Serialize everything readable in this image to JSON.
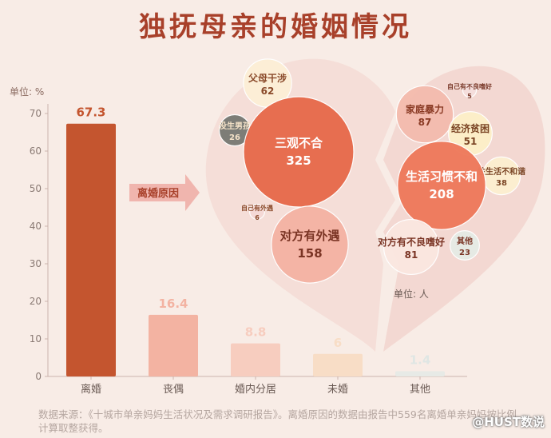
{
  "page": {
    "title": "独抚母亲的婚姻情况",
    "unit_label": "单位: %",
    "source_note": "数据来源：《十城市单亲妈妈生活状况及需求调研报告》。离婚原因的数据由报告中559名离婚单亲妈妈按比例计算取整获得。",
    "watermark": "@HUST数说"
  },
  "chart_data": [
    {
      "type": "bar",
      "categories": [
        "离婚",
        "丧偶",
        "婚内分居",
        "未婚",
        "其他"
      ],
      "values": [
        67.3,
        16.4,
        8.8,
        6,
        1.4
      ],
      "value_labels": [
        "67.3",
        "16.4",
        "8.8",
        "6",
        "1.4"
      ],
      "ylabel": "单位: %",
      "ylim": [
        0,
        70
      ],
      "yticks": [
        0,
        10,
        20,
        30,
        40,
        50,
        60,
        70
      ],
      "colors": [
        "#c4552f",
        "#f3b3a2",
        "#f7cdbf",
        "#f8ddc6",
        "#e7eae6"
      ],
      "label_colors": [
        "#c4552f",
        "#f3b3a2",
        "#f7cdbf",
        "#f8ddc6",
        "#dfe6e4"
      ],
      "grid": false
    },
    {
      "type": "bubble",
      "arrow_label": "离婚原因",
      "unit_label": "单位: 人",
      "bubbles": [
        {
          "name": "父母干涉",
          "value": 62,
          "label": "62",
          "color": "#fdefd6",
          "text_color": "#8a4a2a"
        },
        {
          "name": "没生男孩",
          "value": 26,
          "label": "26",
          "color": "#7a7a74",
          "text_color": "#f4e2c8"
        },
        {
          "name": "三观不合",
          "value": 325,
          "label": "325",
          "color": "#e76b4c",
          "text_color": "#ffffff"
        },
        {
          "name": "自己有外遇",
          "value": 6,
          "label": "6",
          "color": "#f6d9d6",
          "text_color": "#8a4a2a"
        },
        {
          "name": "对方有外遇",
          "value": 158,
          "label": "158",
          "color": "#f4b3a4",
          "text_color": "#7a3424"
        },
        {
          "name": "自己有不良嗜好",
          "value": 5,
          "label": "5",
          "color": "#f6dfdd",
          "text_color": "#7a3a2a"
        },
        {
          "name": "家庭暴力",
          "value": 87,
          "label": "87",
          "color": "#f4bcae",
          "text_color": "#8a3a24"
        },
        {
          "name": "经济贫困",
          "value": 51,
          "label": "51",
          "color": "#fdefc8",
          "text_color": "#7a4424"
        },
        {
          "name": "性生活不和谐",
          "value": 38,
          "label": "38",
          "color": "#fdefd0",
          "text_color": "#7a4424"
        },
        {
          "name": "生活习惯不和",
          "value": 208,
          "label": "208",
          "color": "#ee7a5c",
          "text_color": "#ffffff"
        },
        {
          "name": "对方有不良嗜好",
          "value": 81,
          "label": "81",
          "color": "#fbe7e0",
          "text_color": "#7a3424"
        },
        {
          "name": "其他",
          "value": 23,
          "label": "23",
          "color": "#e6ebe5",
          "text_color": "#7a3424"
        }
      ]
    }
  ]
}
